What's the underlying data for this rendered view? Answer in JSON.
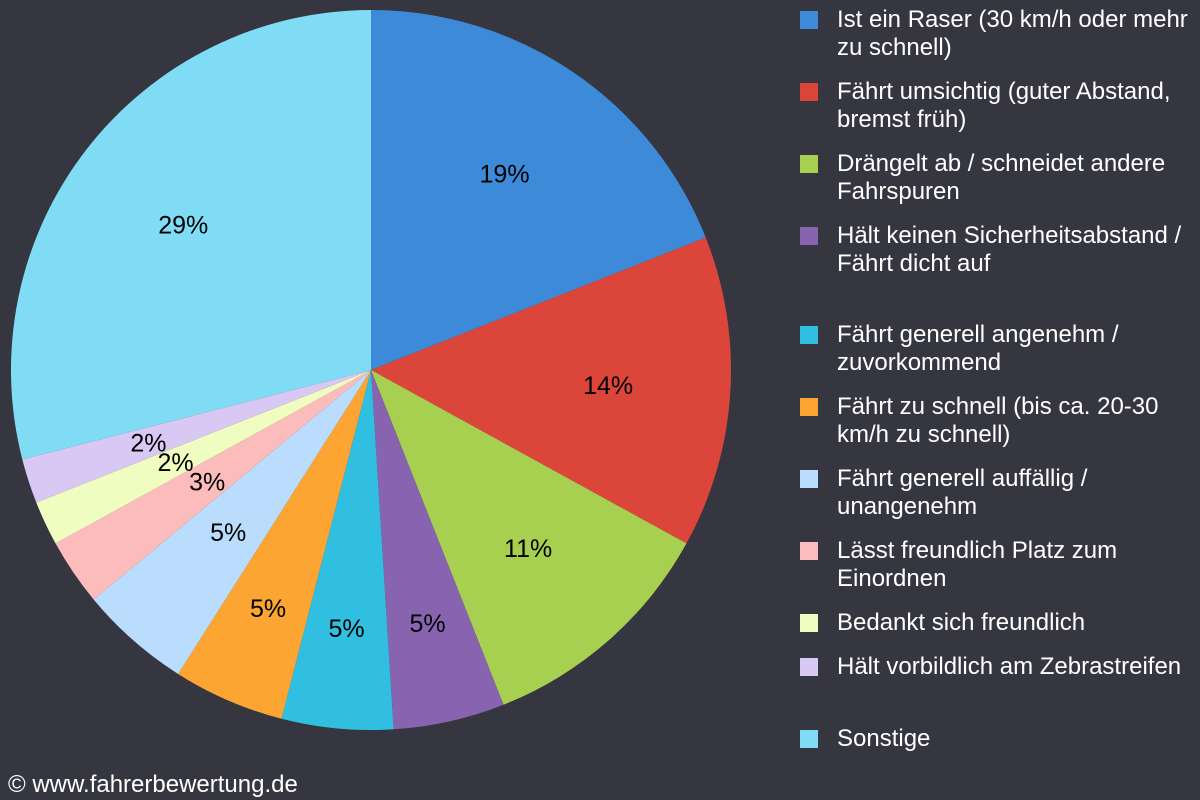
{
  "chart_data": {
    "type": "pie",
    "start": "top",
    "direction": "clockwise",
    "legend_position": "right",
    "slices": [
      {
        "label": "Ist ein Raser (30 km/h oder mehr zu schnell)",
        "value": 19,
        "data_label": "19%",
        "color": "#3d8bd8"
      },
      {
        "label": "Fährt umsichtig (guter Abstand, bremst früh)",
        "value": 14,
        "data_label": "14%",
        "color": "#dc453a"
      },
      {
        "label": "Drängelt ab / schneidet andere Fahrspuren",
        "value": 11,
        "data_label": "11%",
        "color": "#a8d050"
      },
      {
        "label": "Hält keinen Sicherheitsabstand / Fährt dicht auf",
        "value": 5,
        "data_label": "5%",
        "color": "#8864b0"
      },
      {
        "label": "Fährt generell angenehm / zuvorkommend",
        "value": 5,
        "data_label": "5%",
        "color": "#30bfe0"
      },
      {
        "label": "Fährt zu schnell (bis ca. 20-30 km/h zu schnell)",
        "value": 5,
        "data_label": "5%",
        "color": "#fda533"
      },
      {
        "label": "Fährt generell auffällig / unangenehm",
        "value": 5,
        "data_label": "5%",
        "color": "#badcfd"
      },
      {
        "label": "Lässt freundlich Platz zum Einordnen",
        "value": 3,
        "data_label": "3%",
        "color": "#fdbcbc"
      },
      {
        "label": "Bedankt sich freundlich",
        "value": 2,
        "data_label": "2%",
        "color": "#f0fdc0"
      },
      {
        "label": "Hält vorbildlich am Zebrastreifen",
        "value": 2,
        "data_label": "2%",
        "color": "#dac8f4"
      },
      {
        "label": "Sonstige",
        "value": 29,
        "data_label": "29%",
        "color": "#80dcf4"
      }
    ]
  },
  "footer": {
    "copyright": "© www.fahrerbewertung.de"
  }
}
